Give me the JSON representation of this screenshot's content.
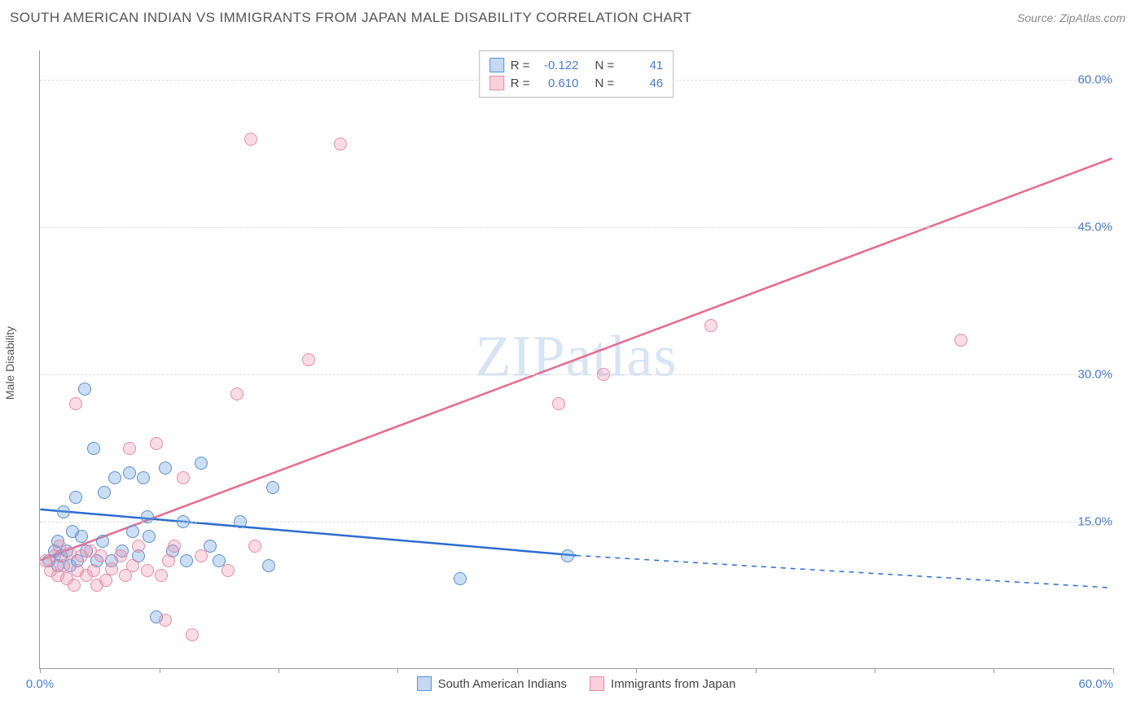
{
  "header": {
    "title": "SOUTH AMERICAN INDIAN VS IMMIGRANTS FROM JAPAN MALE DISABILITY CORRELATION CHART",
    "source": "Source: ZipAtlas.com"
  },
  "watermark": "ZIPatlas",
  "ylabel": "Male Disability",
  "chart": {
    "type": "scatter",
    "x_min": 0,
    "x_max": 60,
    "y_min": 0,
    "y_max": 63,
    "y_ticks": [
      15,
      30,
      45,
      60
    ],
    "y_tick_labels": [
      "15.0%",
      "30.0%",
      "45.0%",
      "60.0%"
    ],
    "x_ticks": [
      0,
      6.67,
      13.33,
      20,
      26.67,
      33.33,
      40,
      46.67,
      53.33,
      60
    ],
    "x_start_label": "0.0%",
    "x_end_label": "60.0%",
    "colors": {
      "blue_fill": "rgba(110,160,220,0.35)",
      "blue_stroke": "#5a8fd0",
      "pink_fill": "rgba(240,140,165,0.3)",
      "pink_stroke": "#e88ba5",
      "blue_line": "#2d6cd0",
      "pink_line": "#e66a8f",
      "grid": "#dddddd",
      "axis": "#999999",
      "tick_text": "#4a7bc8",
      "title_text": "#555555"
    },
    "marker_radius": 8,
    "line_width_blue": 2.5,
    "line_width_pink": 2.5,
    "blue_line": {
      "x1": 0,
      "y1": 16.2,
      "x2": 30,
      "y2": 11.5,
      "ext_x": 60,
      "ext_y": 8.2
    },
    "pink_line": {
      "x1": 0,
      "y1": 11,
      "x2": 60,
      "y2": 52
    },
    "series": [
      {
        "name": "South American Indians",
        "color_class": "blue",
        "r": -0.122,
        "n": 41,
        "points": [
          [
            0.5,
            11
          ],
          [
            0.8,
            12
          ],
          [
            1,
            10.5
          ],
          [
            1,
            13
          ],
          [
            1.2,
            11.5
          ],
          [
            1.3,
            16
          ],
          [
            1.5,
            12
          ],
          [
            1.7,
            10.5
          ],
          [
            1.8,
            14
          ],
          [
            2,
            17.5
          ],
          [
            2.1,
            11
          ],
          [
            2.3,
            13.5
          ],
          [
            2.5,
            28.5
          ],
          [
            2.6,
            12
          ],
          [
            3,
            22.5
          ],
          [
            3.2,
            11
          ],
          [
            3.5,
            13
          ],
          [
            3.6,
            18
          ],
          [
            4,
            11
          ],
          [
            4.2,
            19.5
          ],
          [
            4.6,
            12
          ],
          [
            5,
            20
          ],
          [
            5.2,
            14
          ],
          [
            5.5,
            11.5
          ],
          [
            5.8,
            19.5
          ],
          [
            6,
            15.5
          ],
          [
            6.1,
            13.5
          ],
          [
            6.5,
            5.3
          ],
          [
            7,
            20.5
          ],
          [
            7.4,
            12
          ],
          [
            8,
            15
          ],
          [
            8.2,
            11
          ],
          [
            9,
            21
          ],
          [
            9.5,
            12.5
          ],
          [
            10,
            11
          ],
          [
            11.2,
            15
          ],
          [
            12.8,
            10.5
          ],
          [
            13,
            18.5
          ],
          [
            23.5,
            9.2
          ],
          [
            29.5,
            11.5
          ]
        ]
      },
      {
        "name": "Immigrants from Japan",
        "color_class": "pink",
        "r": 0.61,
        "n": 46,
        "points": [
          [
            0.3,
            11
          ],
          [
            0.6,
            10
          ],
          [
            0.8,
            11.5
          ],
          [
            1,
            9.5
          ],
          [
            1.1,
            12.5
          ],
          [
            1.3,
            10.5
          ],
          [
            1.5,
            9.2
          ],
          [
            1.7,
            11.8
          ],
          [
            1.9,
            8.5
          ],
          [
            2,
            27
          ],
          [
            2.1,
            10
          ],
          [
            2.3,
            11.5
          ],
          [
            2.6,
            9.5
          ],
          [
            2.8,
            12
          ],
          [
            3,
            10
          ],
          [
            3.2,
            8.5
          ],
          [
            3.4,
            11.5
          ],
          [
            3.7,
            9
          ],
          [
            4,
            10.2
          ],
          [
            4.5,
            11.5
          ],
          [
            4.8,
            9.5
          ],
          [
            5,
            22.5
          ],
          [
            5.2,
            10.5
          ],
          [
            5.5,
            12.5
          ],
          [
            6,
            10
          ],
          [
            6.5,
            23
          ],
          [
            6.8,
            9.5
          ],
          [
            7,
            5
          ],
          [
            7.2,
            11
          ],
          [
            7.5,
            12.5
          ],
          [
            8,
            19.5
          ],
          [
            8.5,
            3.5
          ],
          [
            9,
            11.5
          ],
          [
            10.5,
            10
          ],
          [
            11,
            28
          ],
          [
            11.8,
            54
          ],
          [
            12,
            12.5
          ],
          [
            15,
            31.5
          ],
          [
            16.8,
            53.5
          ],
          [
            29,
            27
          ],
          [
            31.5,
            30
          ],
          [
            37.5,
            35
          ],
          [
            51.5,
            33.5
          ]
        ]
      }
    ]
  },
  "legend_top": {
    "rows": [
      {
        "swatch": "blue",
        "r_label": "R =",
        "r": "-0.122",
        "n_label": "N =",
        "n": "41"
      },
      {
        "swatch": "pink",
        "r_label": "R =",
        "r": "0.610",
        "n_label": "N =",
        "n": "46"
      }
    ]
  },
  "legend_bottom": {
    "items": [
      {
        "swatch": "blue",
        "label": "South American Indians"
      },
      {
        "swatch": "pink",
        "label": "Immigrants from Japan"
      }
    ]
  }
}
